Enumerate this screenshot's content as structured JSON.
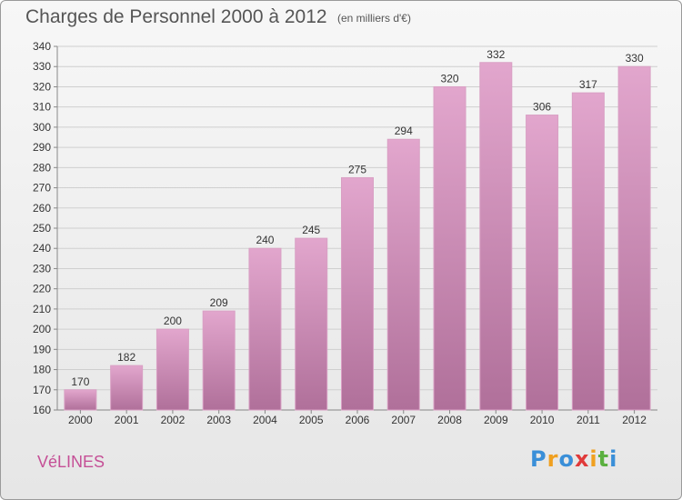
{
  "title": "Charges de Personnel 2000 à 2012",
  "subtitle": "(en milliers d'€)",
  "city": "VéLINES",
  "logo": {
    "text": "Proxiti",
    "letters": [
      {
        "char": "P",
        "color": "#3a8fd8"
      },
      {
        "char": "r",
        "color": "#f0a020"
      },
      {
        "char": "o",
        "color": "#3a8fd8"
      },
      {
        "char": "x",
        "color": "#e03a3a"
      },
      {
        "char": "i",
        "color": "#f0a020"
      },
      {
        "char": "t",
        "color": "#5bb040"
      },
      {
        "char": "i",
        "color": "#3a8fd8"
      }
    ]
  },
  "colors": {
    "bar_top": "#e2a6cd",
    "bar_bottom": "#b0709a",
    "grid": "#cfcfcf",
    "axis_text": "#333333",
    "city": "#c54f96"
  },
  "chart_data": {
    "type": "bar",
    "title": "Charges de Personnel 2000 à 2012",
    "subtitle": "(en milliers d'€)",
    "categories": [
      "2000",
      "2001",
      "2002",
      "2003",
      "2004",
      "2005",
      "2006",
      "2007",
      "2008",
      "2009",
      "2010",
      "2011",
      "2012"
    ],
    "values": [
      170,
      182,
      200,
      209,
      240,
      245,
      275,
      294,
      320,
      332,
      306,
      317,
      330
    ],
    "ylim": [
      160,
      340
    ],
    "yticks": [
      160,
      170,
      180,
      190,
      200,
      210,
      220,
      230,
      240,
      250,
      260,
      270,
      280,
      290,
      300,
      310,
      320,
      330,
      340
    ],
    "grid": true,
    "legend": "none"
  }
}
